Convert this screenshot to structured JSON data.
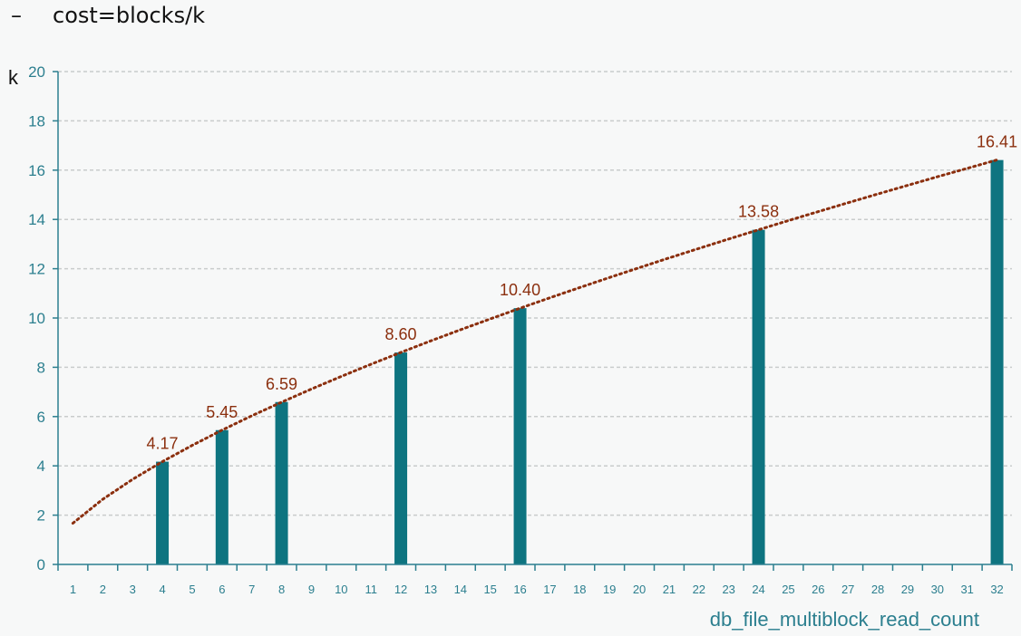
{
  "header": {
    "bullet": "–",
    "formula": "cost=blocks/k"
  },
  "chart_data": {
    "type": "bar",
    "xlabel": "db_file_multiblock_read_count",
    "ylabel": "k",
    "ylim": [
      0,
      20
    ],
    "yticks": [
      0,
      2,
      4,
      6,
      8,
      10,
      12,
      14,
      16,
      18,
      20
    ],
    "categories": [
      1,
      2,
      3,
      4,
      5,
      6,
      7,
      8,
      9,
      10,
      11,
      12,
      13,
      14,
      15,
      16,
      17,
      18,
      19,
      20,
      21,
      22,
      23,
      24,
      25,
      26,
      27,
      28,
      29,
      30,
      31,
      32
    ],
    "values": [
      null,
      null,
      null,
      4.17,
      null,
      5.45,
      null,
      6.59,
      null,
      null,
      null,
      8.6,
      null,
      null,
      null,
      10.4,
      null,
      null,
      null,
      null,
      null,
      null,
      null,
      13.58,
      null,
      null,
      null,
      null,
      null,
      null,
      null,
      16.41
    ],
    "value_labels": {
      "4": "4.17",
      "6": "5.45",
      "8": "6.59",
      "12": "8.60",
      "16": "10.40",
      "24": "13.58",
      "32": "16.41"
    },
    "trendline": {
      "style": "dotted",
      "type": "power"
    },
    "grid": true,
    "colors": {
      "bar": "#0e7480",
      "trend": "#8b2f0e",
      "axis": "#2c7f8f",
      "grid": "#c9cccc"
    }
  }
}
